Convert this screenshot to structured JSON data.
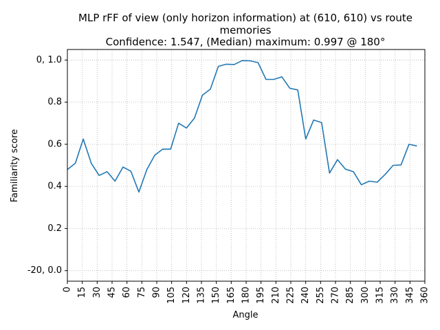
{
  "chart_data": {
    "type": "line",
    "title": "MLP rFF of view (only horizon information) at (610, 610) vs route\nmemories\nConfidence: 1.547, (Median) maximum: 0.997 @ 180°",
    "title_lines": [
      "MLP rFF of view (only horizon information) at (610, 610) vs route",
      "memories",
      "Confidence: 1.547, (Median) maximum: 0.997 @ 180°"
    ],
    "xlabel": "Angle",
    "ylabel": "Familiarity score",
    "xlim": [
      0,
      360
    ],
    "ylim": [
      -0.05,
      1.05
    ],
    "grid": true,
    "line_color": "#1f77b4",
    "xticks": [
      0,
      15,
      30,
      45,
      60,
      75,
      90,
      105,
      120,
      135,
      150,
      165,
      180,
      195,
      210,
      225,
      240,
      255,
      270,
      285,
      300,
      315,
      330,
      345,
      360
    ],
    "xtick_labels": [
      "0",
      "15",
      "30",
      "45",
      "60",
      "75",
      "90",
      "105",
      "120",
      "135",
      "150",
      "165",
      "180",
      "195",
      "210",
      "225",
      "240",
      "255",
      "270",
      "285",
      "300",
      "315",
      "330",
      "345",
      "360"
    ],
    "yticks": [
      0.0,
      0.2,
      0.4,
      0.6,
      0.8,
      1.0
    ],
    "ytick_labels": [
      "-20, 0.0",
      "0.2",
      "0.4",
      "0.6",
      "0.8",
      "0, 1.0"
    ],
    "x": [
      0,
      8,
      16,
      24,
      32,
      40,
      48,
      56,
      64,
      72,
      80,
      88,
      96,
      104,
      112,
      120,
      128,
      136,
      144,
      152,
      160,
      168,
      176,
      184,
      192,
      200,
      208,
      216,
      224,
      232,
      240,
      248,
      256,
      264,
      272,
      280,
      288,
      296,
      304,
      312,
      320,
      328,
      336,
      344,
      352
    ],
    "y": [
      0.48,
      0.51,
      0.625,
      0.51,
      0.452,
      0.47,
      0.425,
      0.492,
      0.472,
      0.373,
      0.48,
      0.548,
      0.577,
      0.577,
      0.7,
      0.677,
      0.725,
      0.833,
      0.862,
      0.97,
      0.98,
      0.979,
      0.997,
      0.996,
      0.988,
      0.908,
      0.908,
      0.92,
      0.866,
      0.858,
      0.625,
      0.715,
      0.703,
      0.463,
      0.527,
      0.482,
      0.47,
      0.408,
      0.425,
      0.42,
      0.457,
      0.5,
      0.502,
      0.6,
      0.592
    ]
  }
}
